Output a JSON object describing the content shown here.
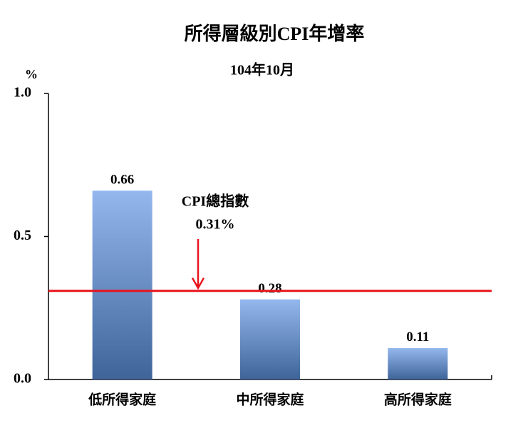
{
  "chart_data": {
    "type": "bar",
    "title": "所得層級別CPI年增率",
    "subtitle": "104年10月",
    "y_label": "%",
    "categories": [
      "低所得家庭",
      "中所得家庭",
      "高所得家庭"
    ],
    "values": [
      0.66,
      0.28,
      0.11
    ],
    "color_top": "#94b8ee",
    "color_bottom": "#3e6499",
    "ylim": [
      0,
      1
    ],
    "yticks": [
      {
        "value": 0,
        "label": "0.0"
      },
      {
        "value": 0.5,
        "label": "0.5"
      },
      {
        "value": 1,
        "label": "1.0"
      }
    ],
    "reference_line": {
      "value": 0.31,
      "label": "CPI總指數",
      "value_label": "0.31%",
      "color": "#e8141c"
    }
  }
}
